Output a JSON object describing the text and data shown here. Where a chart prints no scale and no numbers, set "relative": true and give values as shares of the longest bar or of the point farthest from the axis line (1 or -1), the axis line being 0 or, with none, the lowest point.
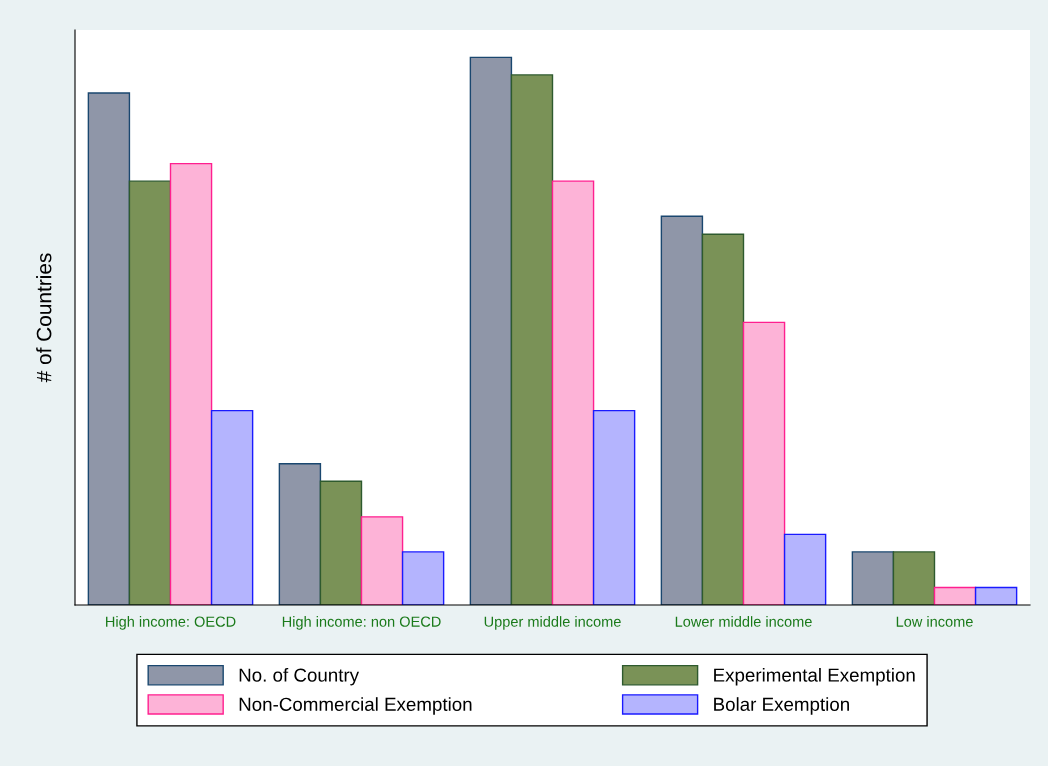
{
  "chart_data": {
    "type": "bar",
    "relative": true,
    "ylabel": "# of Countries",
    "categories": [
      "High income: OECD",
      "High income: non OECD",
      "Upper middle income",
      "Lower middle income",
      "Low income"
    ],
    "series": [
      {
        "name": "No. of Country",
        "color": "#8f96a8",
        "values": [
          0.935,
          0.258,
          1,
          0.71,
          0.097
        ]
      },
      {
        "name": "Experimental Exemption",
        "color": "#7a9257",
        "values": [
          0.774,
          0.226,
          0.968,
          0.677,
          0.097
        ]
      },
      {
        "name": "Non-Commercial Exemption",
        "color": "#fdb3d7",
        "values": [
          0.806,
          0.161,
          0.774,
          0.516,
          0.032
        ]
      },
      {
        "name": "Bolar Exemption",
        "color": "#b4b4fe",
        "values": [
          0.355,
          0.097,
          0.355,
          0.129,
          0.032
        ]
      }
    ],
    "legend": "bottom"
  }
}
